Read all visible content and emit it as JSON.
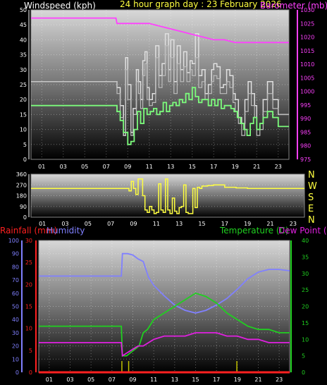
{
  "header": {
    "windspeed_title": "Windspeed (kph)",
    "graph_title": "24 hour graph day : 23 February 2026",
    "barometer_title": "Barometer (mb)"
  },
  "lower_header": {
    "rainfall_title": "Rainfall (mm)",
    "humidity_title": "Humidity",
    "temperature_title": "Temperature (C)",
    "dewpoint_title": "Dew Point (C)"
  },
  "colors": {
    "windspeed": "#ffffff",
    "gust": "#e0e0e0",
    "avgwind": "#7cfc7c",
    "barometer": "#ff40ff",
    "direction": "#ffff40",
    "rainfall": "#ff2020",
    "humidity": "#8080ff",
    "temperature": "#20d020",
    "dewpoint": "#e020e0",
    "rain_bar": "#c0c000"
  },
  "compass": [
    "N",
    "W",
    "S",
    "E",
    "N"
  ],
  "chart_data": [
    {
      "type": "line",
      "name": "wind_and_pressure",
      "x_ticks": [
        "01",
        "03",
        "05",
        "07",
        "09",
        "11",
        "13",
        "15",
        "17",
        "19",
        "21",
        "23"
      ],
      "y_left_ticks": [
        "0",
        "5",
        "10",
        "15",
        "20",
        "25",
        "30",
        "35",
        "40",
        "45",
        "50"
      ],
      "y_left_range": [
        0,
        50
      ],
      "y_right_ticks": [
        "975",
        "980",
        "985",
        "990",
        "995",
        "1000",
        "1005",
        "1010",
        "1015",
        "1020",
        "1025",
        "1030"
      ],
      "y_right_range": [
        975,
        1030
      ],
      "x_range": [
        0,
        24
      ],
      "series": [
        {
          "key": "gust",
          "x": [
            0,
            7.9,
            8.0,
            8.3,
            8.6,
            8.8,
            9.0,
            9.3,
            9.5,
            9.8,
            10.0,
            10.2,
            10.4,
            10.6,
            10.8,
            11.0,
            11.3,
            11.6,
            11.9,
            12.2,
            12.5,
            12.8,
            13.0,
            13.3,
            13.6,
            13.9,
            14.2,
            14.5,
            14.8,
            15.0,
            15.3,
            15.6,
            15.9,
            16.2,
            16.5,
            16.8,
            17.0,
            17.3,
            17.6,
            17.9,
            18.2,
            18.5,
            18.8,
            19.0,
            19.3,
            19.6,
            19.9,
            20.2,
            20.5,
            20.8,
            21.0,
            21.3,
            21.6,
            22.0,
            22.5,
            23.0,
            24
          ],
          "y": [
            26,
            26,
            24,
            18,
            8,
            34,
            25,
            9,
            17,
            30,
            26,
            20,
            33,
            36,
            24,
            20,
            22,
            38,
            28,
            32,
            42,
            30,
            40,
            26,
            38,
            30,
            36,
            29,
            33,
            32,
            42,
            28,
            30,
            22,
            25,
            30,
            32,
            31,
            24,
            25,
            30,
            28,
            22,
            20,
            14,
            12,
            20,
            26,
            22,
            18,
            10,
            12,
            20,
            26,
            20,
            15,
            15
          ]
        },
        {
          "key": "windspeed",
          "x": [
            0,
            7.9,
            8.0,
            8.3,
            8.6,
            8.8,
            9.0,
            9.3,
            9.5,
            9.8,
            10.0,
            10.2,
            10.4,
            10.6,
            10.8,
            11.0,
            11.3,
            11.6,
            11.9,
            12.2,
            12.5,
            12.8,
            13.0,
            13.3,
            13.6,
            13.9,
            14.2,
            14.5,
            14.8,
            15.0,
            15.3,
            15.6,
            15.9,
            16.2,
            16.5,
            16.8,
            17.0,
            17.3,
            17.6,
            17.9,
            18.2,
            18.5,
            18.8,
            19.0,
            19.3,
            19.6,
            19.9,
            20.2,
            20.5,
            20.8,
            21.0,
            21.3,
            21.6,
            22.0,
            22.5,
            23.0,
            24
          ],
          "y": [
            26,
            26,
            22,
            14,
            8,
            30,
            20,
            8,
            15,
            26,
            22,
            17,
            28,
            32,
            20,
            18,
            19,
            34,
            24,
            28,
            38,
            26,
            34,
            22,
            32,
            26,
            31,
            26,
            30,
            28,
            34,
            24,
            26,
            20,
            22,
            26,
            28,
            27,
            22,
            22,
            26,
            24,
            19,
            16,
            12,
            8,
            16,
            22,
            18,
            14,
            8,
            10,
            16,
            22,
            17,
            15,
            15
          ]
        },
        {
          "key": "avgwind",
          "x": [
            0,
            7.9,
            8.0,
            8.3,
            8.6,
            9.0,
            9.3,
            9.6,
            9.9,
            10.2,
            10.5,
            10.8,
            11.1,
            11.4,
            11.7,
            12.0,
            12.3,
            12.6,
            12.9,
            13.2,
            13.5,
            13.8,
            14.1,
            14.4,
            14.7,
            15.0,
            15.3,
            15.6,
            15.9,
            16.2,
            16.5,
            16.8,
            17.1,
            17.4,
            17.7,
            18.0,
            18.3,
            18.6,
            18.9,
            19.2,
            19.5,
            19.8,
            20.1,
            20.4,
            20.7,
            21.0,
            21.3,
            21.6,
            22.0,
            22.5,
            23.0,
            24
          ],
          "y": [
            18,
            18,
            16,
            13,
            9,
            5,
            6,
            10,
            16,
            12,
            17,
            15,
            16,
            17,
            15,
            16,
            19,
            16,
            18,
            19,
            18,
            20,
            19,
            22,
            20,
            24,
            21,
            19,
            20,
            20,
            18,
            20,
            18,
            20,
            17,
            18,
            18,
            17,
            16,
            14,
            12,
            10,
            8,
            12,
            14,
            10,
            12,
            14,
            16,
            14,
            11,
            11
          ]
        },
        {
          "key": "barometer",
          "x": [
            0,
            1,
            2,
            3,
            4,
            5,
            6,
            7,
            7.9,
            8.0,
            9,
            10,
            11,
            12,
            13,
            14,
            15,
            16,
            17,
            18,
            19,
            20,
            21,
            22,
            23,
            24
          ],
          "y": [
            1027,
            1027,
            1027,
            1027,
            1027,
            1027,
            1027,
            1027,
            1027,
            1025,
            1025,
            1025,
            1025,
            1024,
            1023,
            1022,
            1021,
            1020,
            1019,
            1019,
            1018,
            1018,
            1018,
            1018,
            1018,
            1018
          ]
        }
      ]
    },
    {
      "type": "line",
      "name": "wind_direction",
      "x_ticks": [
        "01",
        "03",
        "05",
        "07",
        "09",
        "11",
        "13",
        "15",
        "17",
        "19",
        "21",
        "23"
      ],
      "y_ticks": [
        "0",
        "90",
        "180",
        "270",
        "360"
      ],
      "y_range": [
        0,
        360
      ],
      "x_range": [
        0,
        24
      ],
      "series": [
        {
          "key": "direction",
          "x": [
            0,
            7.9,
            8.0,
            8.4,
            8.6,
            8.8,
            9.0,
            9.2,
            9.4,
            9.6,
            9.8,
            10.0,
            10.2,
            10.4,
            10.6,
            10.8,
            11.0,
            11.2,
            11.4,
            11.6,
            11.8,
            12.0,
            12.2,
            12.4,
            12.6,
            12.8,
            13.0,
            13.2,
            13.4,
            13.6,
            13.8,
            14.0,
            14.2,
            14.4,
            14.6,
            14.8,
            15.0,
            15.5,
            16,
            17,
            18,
            19,
            20,
            21,
            22,
            23,
            24
          ],
          "y": [
            240,
            240,
            240,
            240,
            220,
            300,
            240,
            190,
            320,
            320,
            180,
            60,
            40,
            90,
            60,
            30,
            40,
            280,
            60,
            40,
            320,
            60,
            30,
            160,
            50,
            30,
            80,
            90,
            270,
            40,
            30,
            30,
            240,
            80,
            250,
            240,
            260,
            265,
            270,
            250,
            245,
            240,
            240,
            240,
            240,
            240,
            240
          ]
        }
      ]
    },
    {
      "type": "line",
      "name": "temperature_humidity",
      "x_ticks": [
        "01",
        "03",
        "05",
        "07",
        "09",
        "11",
        "13",
        "15",
        "17",
        "19",
        "21",
        "23"
      ],
      "humidity_ticks": [
        "0",
        "10",
        "20",
        "30",
        "40",
        "50",
        "60",
        "70",
        "80",
        "90",
        "100"
      ],
      "humidity_range": [
        0,
        100
      ],
      "rainfall_ticks": [
        "0",
        "5",
        "10",
        "15",
        "20",
        "25",
        "30"
      ],
      "rainfall_range": [
        0,
        30
      ],
      "temperature_ticks": [
        "0",
        "5",
        "10",
        "15",
        "20",
        "25",
        "30",
        "35",
        "40"
      ],
      "temperature_range": [
        0,
        40
      ],
      "x_range": [
        0,
        24
      ],
      "series": [
        {
          "key": "humidity",
          "x": [
            0,
            1,
            2,
            3,
            4,
            5,
            6,
            7,
            7.9,
            8.0,
            8.5,
            9.0,
            9.5,
            10.0,
            10.5,
            11,
            12,
            13,
            14,
            15,
            16,
            17,
            18,
            19,
            20,
            21,
            22,
            23,
            24
          ],
          "y": [
            73,
            73,
            73,
            73,
            73,
            73,
            73,
            73,
            73,
            90,
            90,
            89,
            86,
            84,
            72,
            66,
            58,
            51,
            47,
            45,
            47,
            51,
            56,
            63,
            71,
            76,
            78,
            78,
            77
          ]
        },
        {
          "key": "temperature",
          "x": [
            0,
            1,
            2,
            3,
            4,
            5,
            6,
            7,
            7.9,
            8.0,
            8.4,
            8.8,
            9.2,
            9.6,
            10.0,
            10.4,
            10.8,
            11,
            12,
            13,
            14,
            15,
            16,
            17,
            18,
            19,
            20,
            21,
            22,
            23,
            24
          ],
          "y": [
            14,
            14,
            14,
            14,
            14,
            14,
            14,
            14,
            14,
            5,
            5,
            6,
            7,
            8,
            12,
            13,
            15,
            16,
            18,
            20,
            22,
            24,
            23,
            21,
            18,
            16,
            14,
            13,
            13,
            12,
            12
          ]
        },
        {
          "key": "dewpoint",
          "x": [
            0,
            1,
            2,
            3,
            4,
            5,
            6,
            7,
            7.9,
            8.0,
            8.5,
            9.0,
            9.5,
            10.0,
            10.5,
            11,
            12,
            13,
            14,
            15,
            16,
            17,
            18,
            19,
            20,
            21,
            22,
            23,
            24
          ],
          "y": [
            9,
            9,
            9,
            9,
            9,
            9,
            9,
            9,
            9,
            5,
            6,
            7,
            8,
            8,
            9,
            10,
            11,
            11,
            11,
            12,
            12,
            12,
            11,
            11,
            10,
            10,
            9,
            9,
            9
          ]
        },
        {
          "key": "rainfall",
          "x": [
            0,
            24
          ],
          "y": [
            0,
            0
          ]
        }
      ],
      "rain_ticks_x": [
        7.95,
        8.6,
        18.95
      ]
    }
  ]
}
